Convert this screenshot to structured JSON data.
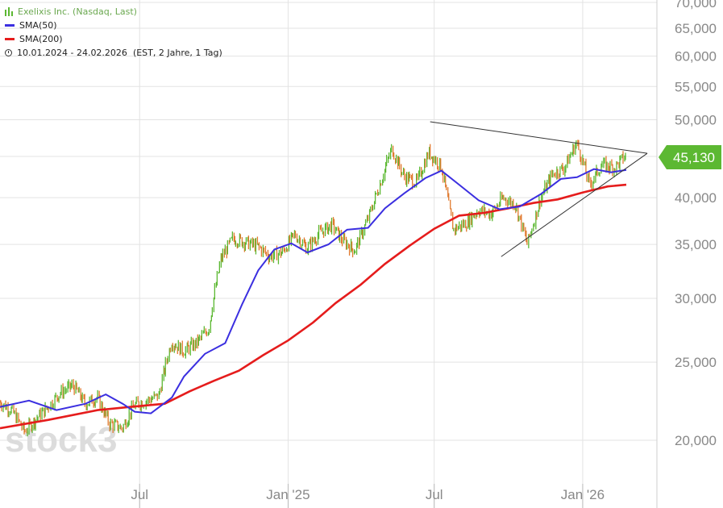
{
  "legend": {
    "instrument": "Exelixis Inc. (Nasdaq, Last)",
    "sma50": "SMA(50)",
    "sma200": "SMA(200)",
    "range": "10.01.2024 - 24.02.2026",
    "range_detail": "(EST, 2 Jahre, 1 Tag)"
  },
  "watermark": "stock3",
  "colors": {
    "price_up": "#5cb832",
    "price_down": "#e07a2e",
    "sma50": "#3b2fe0",
    "sma200": "#e51c1c",
    "trendline": "#333333",
    "last_price_tag": "#5cb832",
    "grid": "#e3e3e3"
  },
  "last_price_label": "45,130",
  "chart_data": {
    "type": "line",
    "scale": "log",
    "ylim": [
      19000,
      70500
    ],
    "y_ticks": [
      20000,
      25000,
      30000,
      35000,
      40000,
      45000,
      50000,
      55000,
      60000,
      65000,
      70000
    ],
    "y_tick_labels": [
      "20,000",
      "25,000",
      "30,000",
      "35,000",
      "40,000",
      "45,000",
      "50,000",
      "55,000",
      "60,000",
      "65,000",
      "70,000"
    ],
    "x_range": [
      "2024-01-10",
      "2026-02-24"
    ],
    "x_ticks": [
      "2024-07-01",
      "2025-01-01",
      "2025-07-01",
      "2026-01-01"
    ],
    "x_tick_labels": [
      "Jul",
      "Jan '25",
      "Jul",
      "Jan '26"
    ],
    "last_value": 45.13,
    "series": [
      {
        "name": "Exelixis Inc. (Nasdaq, Last)",
        "x": [
          "2024-01-10",
          "2024-01-25",
          "2024-02-10",
          "2024-02-25",
          "2024-03-10",
          "2024-03-25",
          "2024-04-10",
          "2024-04-25",
          "2024-05-10",
          "2024-05-25",
          "2024-06-10",
          "2024-06-25",
          "2024-07-10",
          "2024-07-25",
          "2024-08-10",
          "2024-08-25",
          "2024-09-10",
          "2024-09-25",
          "2024-10-10",
          "2024-10-25",
          "2024-11-10",
          "2024-11-25",
          "2024-12-10",
          "2024-12-25",
          "2025-01-10",
          "2025-01-25",
          "2025-02-10",
          "2025-02-25",
          "2025-03-10",
          "2025-03-25",
          "2025-04-10",
          "2025-04-25",
          "2025-05-10",
          "2025-05-25",
          "2025-06-10",
          "2025-06-25",
          "2025-07-10",
          "2025-07-25",
          "2025-08-10",
          "2025-08-25",
          "2025-09-10",
          "2025-09-25",
          "2025-10-10",
          "2025-10-25",
          "2025-11-10",
          "2025-11-25",
          "2025-12-10",
          "2025-12-25",
          "2026-01-10",
          "2026-01-25",
          "2026-02-10",
          "2026-02-24"
        ],
        "values": [
          22.3,
          21.8,
          20.5,
          21.3,
          22.0,
          22.9,
          23.4,
          22.2,
          22.6,
          21.0,
          20.7,
          22.1,
          22.4,
          22.7,
          26.5,
          25.8,
          26.4,
          27.5,
          33.5,
          35.6,
          35.2,
          34.8,
          33.8,
          34.2,
          36.0,
          34.6,
          36.2,
          37.0,
          35.4,
          34.4,
          37.5,
          41.5,
          46.0,
          42.5,
          41.8,
          45.5,
          43.8,
          36.5,
          37.2,
          38.6,
          38.2,
          40.0,
          39.2,
          35.0,
          39.8,
          42.8,
          43.6,
          46.8,
          41.5,
          43.9,
          43.6,
          45.13
        ]
      },
      {
        "name": "SMA(50)",
        "x": [
          "2024-01-10",
          "2024-02-15",
          "2024-03-20",
          "2024-04-25",
          "2024-05-20",
          "2024-06-10",
          "2024-06-25",
          "2024-07-15",
          "2024-08-10",
          "2024-08-25",
          "2024-09-20",
          "2024-10-15",
          "2024-11-05",
          "2024-11-25",
          "2024-12-15",
          "2025-01-05",
          "2025-01-25",
          "2025-02-20",
          "2025-03-15",
          "2025-04-10",
          "2025-05-01",
          "2025-05-25",
          "2025-06-20",
          "2025-07-10",
          "2025-08-01",
          "2025-08-25",
          "2025-09-20",
          "2025-10-15",
          "2025-11-10",
          "2025-12-05",
          "2025-12-25",
          "2026-01-15",
          "2026-02-05",
          "2026-02-24"
        ],
        "values": [
          22.0,
          22.4,
          21.8,
          22.2,
          22.8,
          22.2,
          21.7,
          21.6,
          22.6,
          24.0,
          25.6,
          26.4,
          29.5,
          32.5,
          34.5,
          35.1,
          34.2,
          35.0,
          36.5,
          36.7,
          38.8,
          40.5,
          42.3,
          43.2,
          41.5,
          39.7,
          38.7,
          39.0,
          40.4,
          42.2,
          42.4,
          43.4,
          43.0,
          43.3
        ]
      },
      {
        "name": "SMA(200)",
        "x": [
          "2024-01-10",
          "2024-03-10",
          "2024-05-10",
          "2024-06-20",
          "2024-08-01",
          "2024-09-01",
          "2024-10-01",
          "2024-11-01",
          "2024-12-01",
          "2025-01-01",
          "2025-02-01",
          "2025-03-01",
          "2025-04-01",
          "2025-05-01",
          "2025-06-01",
          "2025-07-01",
          "2025-08-01",
          "2025-09-01",
          "2025-10-01",
          "2025-11-01",
          "2025-12-01",
          "2026-01-01",
          "2026-02-01",
          "2026-02-24"
        ],
        "values": [
          20.7,
          21.2,
          21.8,
          22.0,
          22.2,
          23.0,
          23.7,
          24.4,
          25.5,
          26.6,
          28.0,
          29.6,
          31.2,
          33.1,
          34.9,
          36.6,
          38.0,
          38.3,
          38.8,
          39.4,
          39.8,
          40.6,
          41.3,
          41.5
        ]
      }
    ],
    "trendlines": [
      {
        "x": [
          "2025-06-26",
          "2026-03-22"
        ],
        "values": [
          49.7,
          45.4
        ]
      },
      {
        "x": [
          "2025-09-22",
          "2026-03-22"
        ],
        "values": [
          33.8,
          45.4
        ]
      }
    ]
  }
}
